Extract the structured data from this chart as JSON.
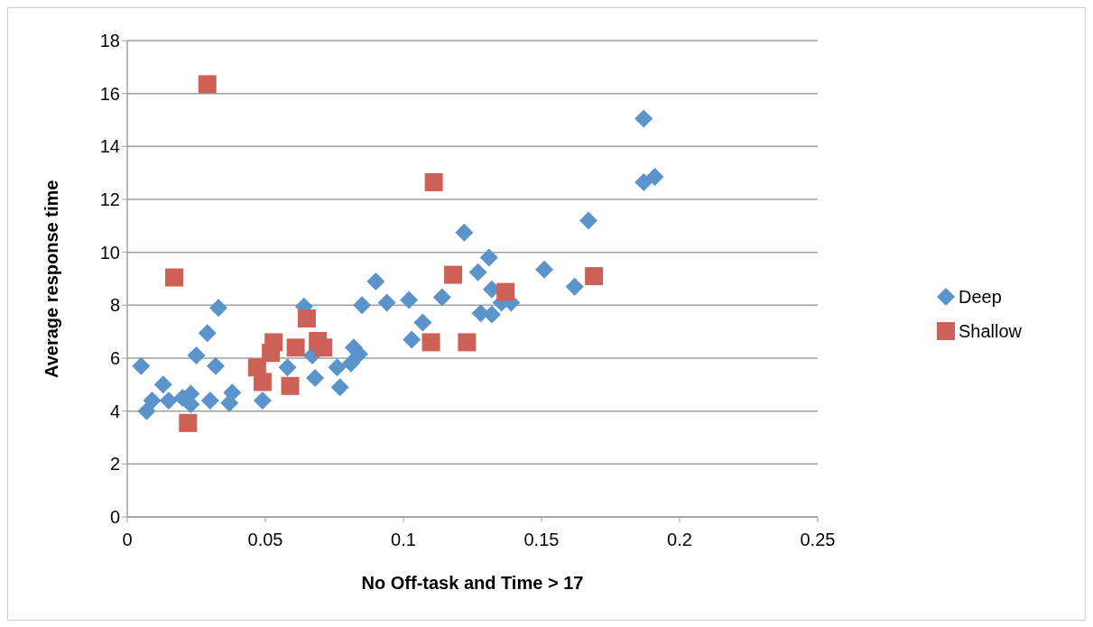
{
  "chart_data": {
    "type": "scatter",
    "xlabel": "No Off-task and Time > 17",
    "ylabel": "Average response time",
    "xlim": [
      0,
      0.25
    ],
    "xticks": [
      0,
      0.05,
      0.1,
      0.15,
      0.2,
      0.25
    ],
    "ylim": [
      0,
      18
    ],
    "yticks": [
      0,
      2,
      4,
      6,
      8,
      10,
      12,
      14,
      16,
      18
    ],
    "grid": "y",
    "legend": "right",
    "series": [
      {
        "name": "Deep",
        "color": "#5b93cb",
        "marker": "diamond",
        "x": [
          0.005,
          0.007,
          0.009,
          0.013,
          0.015,
          0.02,
          0.023,
          0.023,
          0.025,
          0.029,
          0.03,
          0.032,
          0.033,
          0.037,
          0.038,
          0.049,
          0.051,
          0.058,
          0.064,
          0.067,
          0.068,
          0.076,
          0.077,
          0.081,
          0.082,
          0.084,
          0.085,
          0.09,
          0.094,
          0.102,
          0.103,
          0.107,
          0.114,
          0.122,
          0.127,
          0.128,
          0.131,
          0.132,
          0.132,
          0.1355,
          0.139,
          0.151,
          0.162,
          0.167,
          0.187,
          0.187,
          0.191
        ],
        "values": [
          5.7,
          4.0,
          4.4,
          5.0,
          4.4,
          4.5,
          4.65,
          4.25,
          6.1,
          6.95,
          4.4,
          5.7,
          7.9,
          4.3,
          4.7,
          4.4,
          null,
          5.65,
          7.95,
          6.1,
          5.25,
          5.65,
          4.9,
          5.8,
          6.4,
          6.15,
          8.0,
          8.9,
          8.1,
          8.2,
          6.7,
          7.35,
          8.3,
          10.75,
          9.25,
          7.7,
          9.8,
          8.6,
          7.65,
          8.1,
          8.1,
          9.35,
          8.7,
          11.2,
          15.05,
          12.65,
          12.85
        ]
      },
      {
        "name": "Shallow",
        "color": "#cd6158",
        "marker": "square",
        "x": [
          0.029,
          0.017,
          0.022,
          0.047,
          0.049,
          0.053,
          0.052,
          0.059,
          0.061,
          0.065,
          0.069,
          0.071,
          0.111,
          0.11,
          0.123,
          0.118,
          0.137,
          0.169
        ],
        "values": [
          16.35,
          9.05,
          3.55,
          5.65,
          5.1,
          6.6,
          6.2,
          4.95,
          6.4,
          7.5,
          6.65,
          6.4,
          12.65,
          6.6,
          6.6,
          9.15,
          8.5,
          9.1
        ]
      }
    ]
  }
}
